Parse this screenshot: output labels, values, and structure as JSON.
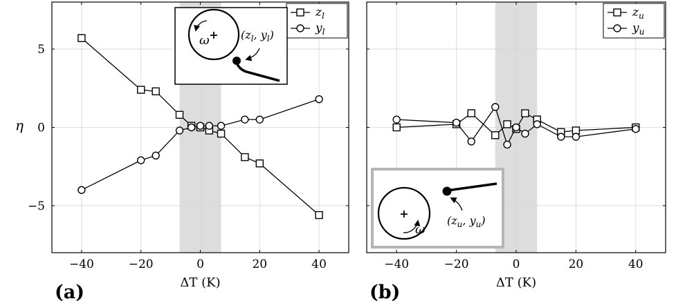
{
  "chart_data": [
    {
      "panel_label": "(a)",
      "type": "line",
      "xlabel": "ΔT (K)",
      "ylabel": "η",
      "xlim": [
        -50,
        50
      ],
      "ylim": [
        -8,
        8
      ],
      "xticks": [
        -40,
        -20,
        0,
        20,
        40
      ],
      "xtick_labels": [
        "−40",
        "−20",
        "0",
        "20",
        "40"
      ],
      "yticks": [
        -5,
        0,
        5
      ],
      "ytick_labels": [
        "−5",
        "0",
        "5"
      ],
      "grid": true,
      "legend_position": "top-right",
      "shaded_band": [
        -7,
        7
      ],
      "series": [
        {
          "name": "z_l",
          "marker": "square",
          "x": [
            -40,
            -20,
            -15,
            -7,
            -3,
            0,
            3,
            7,
            15,
            20,
            40
          ],
          "y": [
            5.7,
            2.4,
            2.3,
            0.8,
            0.1,
            0.0,
            -0.2,
            -0.4,
            -1.9,
            -2.3,
            -5.6
          ]
        },
        {
          "name": "y_l",
          "marker": "circle",
          "x": [
            -40,
            -20,
            -15,
            -7,
            -3,
            0,
            3,
            7,
            15,
            20,
            40
          ],
          "y": [
            -4.0,
            -2.1,
            -1.8,
            -0.2,
            0.0,
            0.1,
            0.1,
            0.1,
            0.5,
            0.5,
            1.8
          ]
        }
      ],
      "inset": {
        "omega_label": "ω",
        "point_label": "(z_l, y_l)"
      }
    },
    {
      "panel_label": "(b)",
      "type": "line",
      "xlabel": "ΔT (K)",
      "xlim": [
        -50,
        50
      ],
      "ylim": [
        -8,
        8
      ],
      "xticks": [
        -40,
        -20,
        0,
        20,
        40
      ],
      "xtick_labels": [
        "−40",
        "−20",
        "0",
        "20",
        "40"
      ],
      "grid": true,
      "legend_position": "top-right",
      "shaded_band": [
        -7,
        7
      ],
      "series": [
        {
          "name": "z_u",
          "marker": "square",
          "x": [
            -40,
            -20,
            -15,
            -7,
            -3,
            0,
            3,
            7,
            15,
            20,
            40
          ],
          "y": [
            0.0,
            0.2,
            0.9,
            -0.5,
            0.2,
            -0.1,
            0.9,
            0.5,
            -0.3,
            -0.2,
            0.0
          ]
        },
        {
          "name": "y_u",
          "marker": "circle",
          "x": [
            -40,
            -20,
            -15,
            -7,
            -3,
            0,
            3,
            7,
            15,
            20,
            40
          ],
          "y": [
            0.5,
            0.3,
            -0.9,
            1.3,
            -1.1,
            0.0,
            -0.4,
            0.2,
            -0.6,
            -0.6,
            -0.1
          ]
        }
      ],
      "inset": {
        "omega_label": "ω",
        "point_label": "(z_u, y_u)"
      }
    }
  ]
}
